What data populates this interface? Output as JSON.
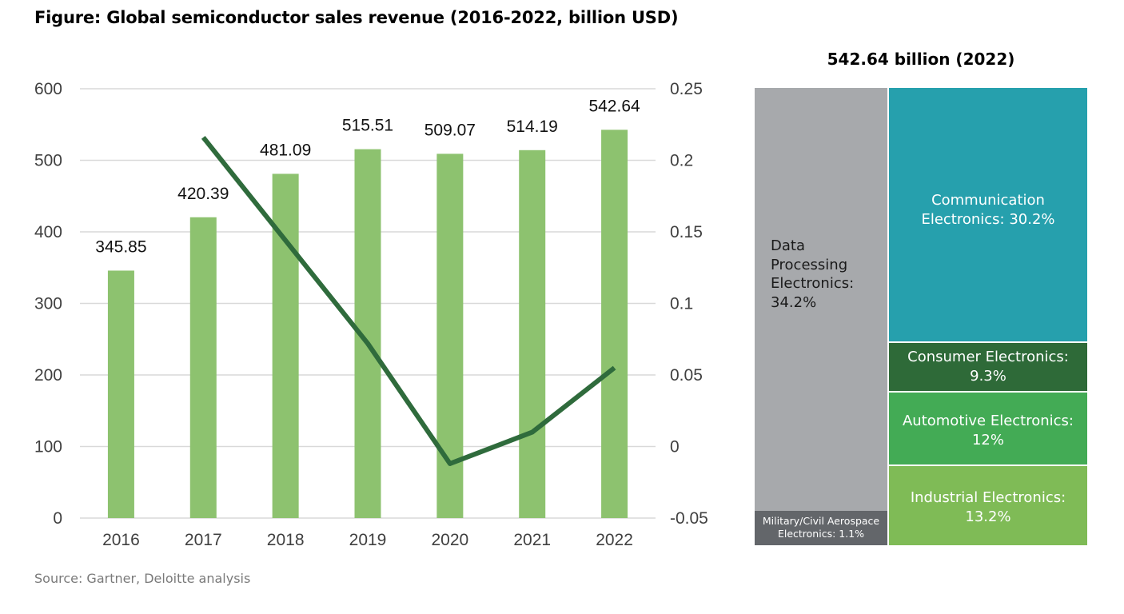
{
  "title": "Figure: Global semiconductor sales revenue (2016-2022, billion USD)",
  "source": "Source: Gartner, Deloitte analysis",
  "chart_data": [
    {
      "type": "bar",
      "categories": [
        "2016",
        "2017",
        "2018",
        "2019",
        "2020",
        "2021",
        "2022"
      ],
      "series": [
        {
          "values": [
            345.85,
            420.39,
            481.09,
            515.51,
            509.07,
            514.19,
            542.64
          ],
          "labels": [
            "345.85",
            "420.39",
            "481.09",
            "515.51",
            "509.07",
            "514.19",
            "542.64"
          ],
          "axis": "left",
          "color": "#8dc26f"
        },
        {
          "type": "line",
          "x": [
            "2017",
            "2018",
            "2019",
            "2020",
            "2021",
            "2022"
          ],
          "values": [
            0.216,
            0.144,
            0.072,
            -0.012,
            0.01,
            0.055
          ],
          "axis": "right",
          "color": "#2f6b3c"
        }
      ],
      "ylim": [
        0,
        600
      ],
      "yticks": [
        "600",
        "500",
        "400",
        "300",
        "200",
        "100",
        "0"
      ],
      "y2lim": [
        -0.05,
        0.25
      ],
      "y2ticks": [
        "0.25",
        "0.2",
        "0.15",
        "0.1",
        "0.05",
        "0",
        "-0.05"
      ],
      "grid": true
    },
    {
      "type": "treemap",
      "title": "542.64 billion (2022)",
      "segments": [
        {
          "lines": [
            "Data",
            "Processing",
            "Electronics:",
            "34.2%"
          ],
          "value": 34.2,
          "color": "#a7a9ac"
        },
        {
          "lines": [
            "Military/Civil Aerospace",
            "Electronics: 1.1%"
          ],
          "value": 1.1,
          "color": "#63666a"
        },
        {
          "lines": [
            "Communication",
            "Electronics: 30.2%"
          ],
          "value": 30.2,
          "color": "#26a0ad"
        },
        {
          "lines": [
            "Consumer Electronics:",
            "9.3%"
          ],
          "value": 9.3,
          "color": "#2e6a38"
        },
        {
          "lines": [
            "Automotive Electronics:",
            "12%"
          ],
          "value": 12,
          "color": "#43ab55"
        },
        {
          "lines": [
            "Industrial Electronics:",
            "13.2%"
          ],
          "value": 13.2,
          "color": "#7fbb56"
        }
      ]
    }
  ]
}
